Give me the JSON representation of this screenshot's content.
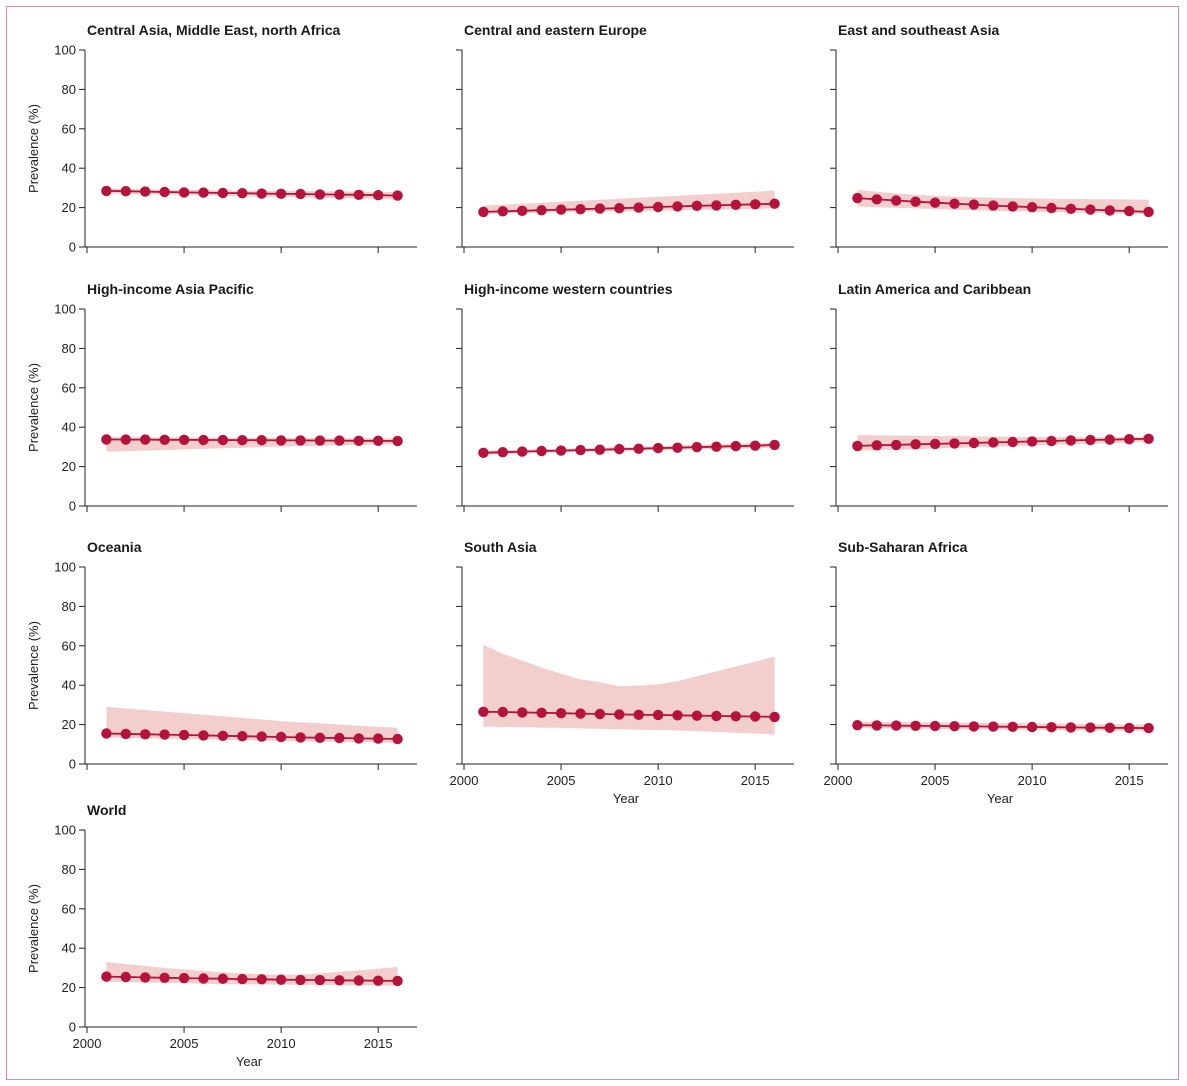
{
  "colors": {
    "line": "#b5123c",
    "band": "#f2cfcc",
    "border": "#d98ca3"
  },
  "chart_data": [
    {
      "type": "line",
      "title": "Central Asia, Middle East, north Africa",
      "ylabel": "Prevalence (%)",
      "xlabel": "",
      "show_x_ticks": false,
      "show_y_labels": true,
      "ylim": [
        0,
        100
      ],
      "yticks": [
        0,
        20,
        40,
        60,
        80,
        100
      ],
      "xlim": [
        2000,
        2017
      ],
      "xticks": [
        2000,
        2005,
        2010,
        2015
      ],
      "x": [
        2001,
        2002,
        2003,
        2004,
        2005,
        2006,
        2007,
        2008,
        2009,
        2010,
        2011,
        2012,
        2013,
        2014,
        2015,
        2016
      ],
      "values": [
        28.5,
        28.3,
        28.1,
        27.9,
        27.7,
        27.6,
        27.4,
        27.3,
        27.1,
        27.0,
        26.9,
        26.7,
        26.6,
        26.5,
        26.3,
        26.1
      ],
      "lower": [
        27.2,
        27.0,
        26.8,
        26.6,
        26.4,
        26.2,
        26.0,
        25.8,
        25.6,
        25.4,
        25.2,
        25.0,
        24.8,
        24.6,
        24.4,
        24.2
      ],
      "upper": [
        29.8,
        29.6,
        29.4,
        29.2,
        29.0,
        28.9,
        28.8,
        28.7,
        28.6,
        28.5,
        28.4,
        28.3,
        28.2,
        28.1,
        28.0,
        27.9
      ]
    },
    {
      "type": "line",
      "title": "Central and eastern Europe",
      "ylabel": "",
      "xlabel": "",
      "show_x_ticks": false,
      "show_y_labels": false,
      "ylim": [
        0,
        100
      ],
      "yticks": [
        0,
        20,
        40,
        60,
        80,
        100
      ],
      "xlim": [
        2000,
        2017
      ],
      "xticks": [
        2000,
        2005,
        2010,
        2015
      ],
      "x": [
        2001,
        2002,
        2003,
        2004,
        2005,
        2006,
        2007,
        2008,
        2009,
        2010,
        2011,
        2012,
        2013,
        2014,
        2015,
        2016
      ],
      "values": [
        17.8,
        18.1,
        18.4,
        18.7,
        19.0,
        19.2,
        19.5,
        19.7,
        20.0,
        20.3,
        20.6,
        20.9,
        21.1,
        21.4,
        21.7,
        22.0
      ],
      "lower": [
        16.8,
        17.0,
        17.2,
        17.4,
        17.6,
        17.8,
        18.0,
        18.1,
        18.3,
        18.5,
        18.7,
        18.9,
        19.0,
        19.2,
        19.4,
        19.6
      ],
      "upper": [
        21.0,
        21.5,
        22.0,
        22.5,
        23.0,
        23.5,
        24.0,
        24.5,
        25.0,
        25.5,
        26.0,
        26.5,
        27.0,
        27.5,
        28.0,
        28.7
      ]
    },
    {
      "type": "line",
      "title": "East and southeast Asia",
      "ylabel": "",
      "xlabel": "",
      "show_x_ticks": false,
      "show_y_labels": false,
      "ylim": [
        0,
        100
      ],
      "yticks": [
        0,
        20,
        40,
        60,
        80,
        100
      ],
      "xlim": [
        2000,
        2017
      ],
      "xticks": [
        2000,
        2005,
        2010,
        2015
      ],
      "x": [
        2001,
        2002,
        2003,
        2004,
        2005,
        2006,
        2007,
        2008,
        2009,
        2010,
        2011,
        2012,
        2013,
        2014,
        2015,
        2016
      ],
      "values": [
        24.8,
        24.2,
        23.6,
        23.0,
        22.5,
        22.0,
        21.5,
        21.0,
        20.6,
        20.2,
        19.8,
        19.4,
        19.0,
        18.6,
        18.2,
        17.8
      ],
      "lower": [
        20.5,
        20.2,
        19.9,
        19.6,
        19.3,
        19.0,
        18.7,
        18.4,
        18.1,
        17.9,
        17.7,
        17.5,
        17.3,
        17.1,
        16.9,
        16.7
      ],
      "upper": [
        29.0,
        28.0,
        27.2,
        26.5,
        26.0,
        25.6,
        25.3,
        25.0,
        24.8,
        24.6,
        24.5,
        24.4,
        24.3,
        24.2,
        24.1,
        24.0
      ]
    },
    {
      "type": "line",
      "title": "High-income Asia Pacific",
      "ylabel": "Prevalence (%)",
      "xlabel": "",
      "show_x_ticks": false,
      "show_y_labels": true,
      "ylim": [
        0,
        100
      ],
      "yticks": [
        0,
        20,
        40,
        60,
        80,
        100
      ],
      "xlim": [
        2000,
        2017
      ],
      "xticks": [
        2000,
        2005,
        2010,
        2015
      ],
      "x": [
        2001,
        2002,
        2003,
        2004,
        2005,
        2006,
        2007,
        2008,
        2009,
        2010,
        2011,
        2012,
        2013,
        2014,
        2015,
        2016
      ],
      "values": [
        33.8,
        33.7,
        33.7,
        33.6,
        33.6,
        33.5,
        33.5,
        33.4,
        33.4,
        33.3,
        33.3,
        33.2,
        33.2,
        33.1,
        33.1,
        33.0
      ],
      "lower": [
        27.5,
        27.8,
        28.1,
        28.4,
        28.7,
        29.0,
        29.3,
        29.6,
        29.9,
        30.2,
        30.4,
        30.6,
        30.8,
        31.0,
        31.2,
        31.3
      ],
      "upper": [
        35.0,
        35.0,
        34.9,
        34.9,
        34.8,
        34.8,
        34.7,
        34.7,
        34.6,
        34.6,
        34.5,
        34.5,
        34.4,
        34.4,
        34.3,
        34.3
      ]
    },
    {
      "type": "line",
      "title": "High-income western countries",
      "ylabel": "",
      "xlabel": "",
      "show_x_ticks": false,
      "show_y_labels": false,
      "ylim": [
        0,
        100
      ],
      "yticks": [
        0,
        20,
        40,
        60,
        80,
        100
      ],
      "xlim": [
        2000,
        2017
      ],
      "xticks": [
        2000,
        2005,
        2010,
        2015
      ],
      "x": [
        2001,
        2002,
        2003,
        2004,
        2005,
        2006,
        2007,
        2008,
        2009,
        2010,
        2011,
        2012,
        2013,
        2014,
        2015,
        2016
      ],
      "values": [
        27.0,
        27.3,
        27.6,
        27.9,
        28.1,
        28.4,
        28.6,
        28.9,
        29.1,
        29.4,
        29.6,
        29.9,
        30.1,
        30.4,
        30.6,
        31.0
      ],
      "lower": [
        26.0,
        26.3,
        26.6,
        26.9,
        27.1,
        27.4,
        27.6,
        27.9,
        28.1,
        28.4,
        28.6,
        28.8,
        29.0,
        29.2,
        29.4,
        29.6
      ],
      "upper": [
        28.0,
        28.3,
        28.6,
        28.9,
        29.1,
        29.4,
        29.6,
        29.9,
        30.1,
        30.4,
        30.7,
        31.0,
        31.3,
        31.6,
        31.9,
        32.2
      ]
    },
    {
      "type": "line",
      "title": "Latin America and Caribbean",
      "ylabel": "",
      "xlabel": "",
      "show_x_ticks": false,
      "show_y_labels": false,
      "ylim": [
        0,
        100
      ],
      "yticks": [
        0,
        20,
        40,
        60,
        80,
        100
      ],
      "xlim": [
        2000,
        2017
      ],
      "xticks": [
        2000,
        2005,
        2010,
        2015
      ],
      "x": [
        2001,
        2002,
        2003,
        2004,
        2005,
        2006,
        2007,
        2008,
        2009,
        2010,
        2011,
        2012,
        2013,
        2014,
        2015,
        2016
      ],
      "values": [
        30.5,
        30.8,
        31.0,
        31.3,
        31.5,
        31.8,
        32.0,
        32.3,
        32.5,
        32.8,
        33.0,
        33.3,
        33.5,
        33.7,
        33.9,
        34.1
      ],
      "lower": [
        28.0,
        28.3,
        28.6,
        28.9,
        29.2,
        29.5,
        29.8,
        30.1,
        30.4,
        30.7,
        31.0,
        31.3,
        31.6,
        31.9,
        32.2,
        32.5
      ],
      "upper": [
        36.0,
        35.9,
        35.8,
        35.7,
        35.6,
        35.5,
        35.4,
        35.3,
        35.2,
        35.1,
        35.0,
        35.0,
        35.0,
        35.0,
        35.0,
        35.0
      ]
    },
    {
      "type": "line",
      "title": "Oceania",
      "ylabel": "Prevalence (%)",
      "xlabel": "",
      "show_x_ticks": false,
      "show_y_labels": true,
      "ylim": [
        0,
        100
      ],
      "yticks": [
        0,
        20,
        40,
        60,
        80,
        100
      ],
      "xlim": [
        2000,
        2017
      ],
      "xticks": [
        2000,
        2005,
        2010,
        2015
      ],
      "x": [
        2001,
        2002,
        2003,
        2004,
        2005,
        2006,
        2007,
        2008,
        2009,
        2010,
        2011,
        2012,
        2013,
        2014,
        2015,
        2016
      ],
      "values": [
        15.5,
        15.3,
        15.1,
        14.9,
        14.7,
        14.5,
        14.3,
        14.1,
        13.9,
        13.7,
        13.5,
        13.3,
        13.2,
        13.0,
        12.9,
        12.7
      ],
      "lower": [
        13.5,
        13.3,
        13.1,
        12.9,
        12.7,
        12.5,
        12.3,
        12.1,
        11.9,
        11.7,
        11.5,
        11.3,
        11.2,
        11.0,
        10.9,
        10.7
      ],
      "upper": [
        29.0,
        28.2,
        27.4,
        26.6,
        25.8,
        25.0,
        24.2,
        23.4,
        22.6,
        21.8,
        21.2,
        20.6,
        20.0,
        19.4,
        18.9,
        18.4
      ]
    },
    {
      "type": "line",
      "title": "South Asia",
      "ylabel": "",
      "xlabel": "Year",
      "show_x_ticks": true,
      "show_y_labels": false,
      "ylim": [
        0,
        100
      ],
      "yticks": [
        0,
        20,
        40,
        60,
        80,
        100
      ],
      "xlim": [
        2000,
        2017
      ],
      "xticks": [
        2000,
        2005,
        2010,
        2015
      ],
      "x": [
        2001,
        2002,
        2003,
        2004,
        2005,
        2006,
        2007,
        2008,
        2009,
        2010,
        2011,
        2012,
        2013,
        2014,
        2015,
        2016
      ],
      "values": [
        26.5,
        26.4,
        26.2,
        26.0,
        25.8,
        25.6,
        25.4,
        25.2,
        25.0,
        24.9,
        24.7,
        24.5,
        24.4,
        24.2,
        24.1,
        23.9
      ],
      "lower": [
        19.0,
        18.8,
        18.7,
        18.5,
        18.3,
        18.0,
        17.8,
        17.6,
        17.4,
        17.2,
        17.0,
        16.7,
        16.3,
        15.9,
        15.5,
        15.0
      ],
      "upper": [
        60.5,
        56.0,
        52.5,
        49.0,
        45.8,
        43.0,
        41.5,
        39.5,
        39.8,
        40.5,
        42.0,
        44.5,
        47.0,
        49.5,
        52.0,
        54.5
      ]
    },
    {
      "type": "line",
      "title": "Sub-Saharan Africa",
      "ylabel": "",
      "xlabel": "Year",
      "show_x_ticks": true,
      "show_y_labels": false,
      "ylim": [
        0,
        100
      ],
      "yticks": [
        0,
        20,
        40,
        60,
        80,
        100
      ],
      "xlim": [
        2000,
        2017
      ],
      "xticks": [
        2000,
        2005,
        2010,
        2015
      ],
      "x": [
        2001,
        2002,
        2003,
        2004,
        2005,
        2006,
        2007,
        2008,
        2009,
        2010,
        2011,
        2012,
        2013,
        2014,
        2015,
        2016
      ],
      "values": [
        19.7,
        19.6,
        19.5,
        19.4,
        19.3,
        19.2,
        19.1,
        19.0,
        18.9,
        18.8,
        18.7,
        18.6,
        18.5,
        18.4,
        18.3,
        18.2
      ],
      "lower": [
        18.2,
        18.1,
        18.0,
        17.9,
        17.8,
        17.7,
        17.6,
        17.5,
        17.4,
        17.3,
        17.2,
        17.1,
        17.0,
        16.9,
        16.8,
        16.7
      ],
      "upper": [
        21.5,
        21.4,
        21.3,
        21.2,
        21.1,
        21.0,
        20.9,
        20.8,
        20.7,
        20.6,
        20.5,
        20.4,
        20.3,
        20.2,
        20.1,
        20.0
      ]
    },
    {
      "type": "line",
      "title": "World",
      "ylabel": "Prevalence (%)",
      "xlabel": "Year",
      "show_x_ticks": true,
      "show_y_labels": true,
      "ylim": [
        0,
        100
      ],
      "yticks": [
        0,
        20,
        40,
        60,
        80,
        100
      ],
      "xlim": [
        2000,
        2017
      ],
      "xticks": [
        2000,
        2005,
        2010,
        2015
      ],
      "x": [
        2001,
        2002,
        2003,
        2004,
        2005,
        2006,
        2007,
        2008,
        2009,
        2010,
        2011,
        2012,
        2013,
        2014,
        2015,
        2016
      ],
      "values": [
        25.6,
        25.4,
        25.2,
        25.0,
        24.8,
        24.6,
        24.5,
        24.3,
        24.2,
        24.0,
        23.9,
        23.8,
        23.7,
        23.6,
        23.5,
        23.4
      ],
      "lower": [
        23.0,
        22.8,
        22.6,
        22.4,
        22.2,
        22.0,
        21.8,
        21.7,
        21.6,
        21.5,
        21.4,
        21.3,
        21.2,
        21.1,
        21.0,
        20.9
      ],
      "upper": [
        33.0,
        32.0,
        31.0,
        30.0,
        29.2,
        28.5,
        27.8,
        27.2,
        26.8,
        26.5,
        26.6,
        27.2,
        28.0,
        28.8,
        29.6,
        30.5
      ]
    }
  ]
}
